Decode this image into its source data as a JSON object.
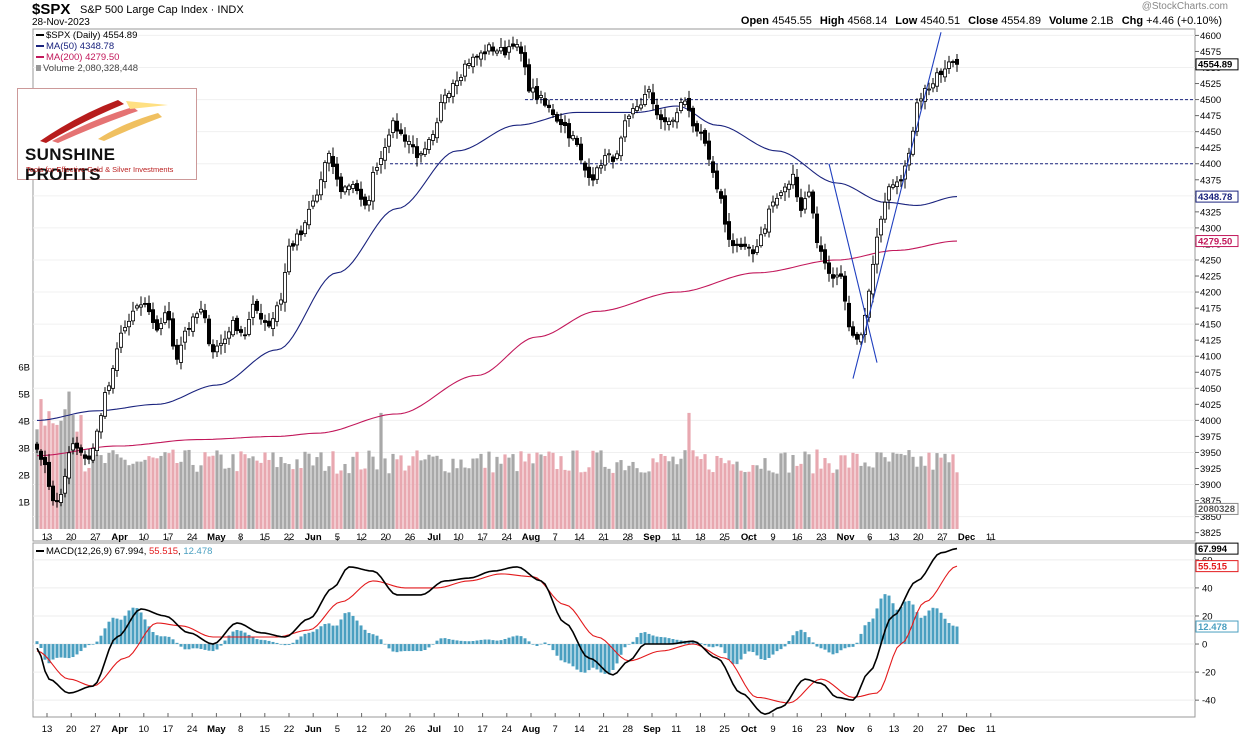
{
  "header": {
    "symbol": "$SPX",
    "index_name": "S&P 500 Large Cap Index",
    "exchange": "INDX",
    "date": "28-Nov-2023",
    "watermark": "@StockCharts.com",
    "open_label": "Open",
    "open": "4545.55",
    "high_label": "High",
    "high": "4568.14",
    "low_label": "Low",
    "low": "4540.51",
    "close_label": "Close",
    "close": "4554.89",
    "volume_label": "Volume",
    "volume": "2.1B",
    "chg_label": "Chg",
    "chg": "+4.46 (+0.10%)"
  },
  "legend": {
    "price": "$SPX (Daily) 4554.89",
    "ma50": "MA(50) 4348.78",
    "ma200": "MA(200) 4279.50",
    "volume": "Volume 2,080,328,448",
    "macd_name": "MACD(12,26,9)",
    "macd_val": "67.994",
    "signal_val": "55.515",
    "hist_val": "12.478"
  },
  "logo": {
    "name": "SUNSHINE PROFITS",
    "tagline": "Tools for Effective Gold & Silver Investments"
  },
  "colors": {
    "up_candle": "#ffffff",
    "down_candle": "#000000",
    "ma50": "#1a237e",
    "ma200": "#c2185b",
    "vol_up": "#a8a8a8",
    "vol_down": "#e8a8b0",
    "macd_line": "#000000",
    "signal_line": "#e31a1c",
    "histogram": "#4a9fc0",
    "dashed_level": "#1a237e",
    "trendline": "#1f3fbf"
  },
  "chart_data": {
    "type": "candlestick",
    "x_ticks": [
      "13",
      "20",
      "27",
      "Apr",
      "10",
      "17",
      "24",
      "May",
      "8",
      "15",
      "22",
      "Jun",
      "5",
      "12",
      "20",
      "26",
      "Jul",
      "10",
      "17",
      "24",
      "Aug",
      "7",
      "14",
      "21",
      "28",
      "Sep",
      "11",
      "18",
      "25",
      "Oct",
      "9",
      "16",
      "23",
      "Nov",
      "6",
      "13",
      "20",
      "27",
      "Dec",
      "11"
    ],
    "price_axis": {
      "ticks": [
        3825,
        3850,
        3875,
        3900,
        3925,
        3950,
        3975,
        4000,
        4025,
        4050,
        4075,
        4100,
        4125,
        4150,
        4175,
        4200,
        4225,
        4250,
        4275,
        4300,
        4325,
        4350,
        4375,
        4400,
        4425,
        4450,
        4475,
        4500,
        4525,
        4550,
        4575,
        4600
      ],
      "range": [
        3812,
        4610
      ],
      "last_price_label": "4554.89",
      "ma50_label": "4348.78",
      "ma200_label": "4279.50",
      "volume_label": "2080328"
    },
    "volume_axis": {
      "ticks": [
        "1B",
        "2B",
        "3B",
        "4B",
        "5B",
        "6B"
      ]
    },
    "macd_axis": {
      "ticks": [
        -40,
        -20,
        0,
        20,
        40,
        60
      ],
      "range": [
        -52,
        72
      ]
    },
    "horizontal_levels": [
      4500,
      4400
    ],
    "close_anchors": [
      [
        0,
        3955
      ],
      [
        5,
        3870
      ],
      [
        9,
        3960
      ],
      [
        13,
        3935
      ],
      [
        15,
        3985
      ],
      [
        18,
        4060
      ],
      [
        21,
        4130
      ],
      [
        24,
        4170
      ],
      [
        27,
        4180
      ],
      [
        30,
        4135
      ],
      [
        32,
        4170
      ],
      [
        35,
        4100
      ],
      [
        37,
        4140
      ],
      [
        41,
        4170
      ],
      [
        44,
        4110
      ],
      [
        46,
        4120
      ],
      [
        49,
        4150
      ],
      [
        52,
        4135
      ],
      [
        54,
        4175
      ],
      [
        58,
        4150
      ],
      [
        61,
        4190
      ],
      [
        63,
        4270
      ],
      [
        66,
        4290
      ],
      [
        69,
        4340
      ],
      [
        73,
        4410
      ],
      [
        76,
        4360
      ],
      [
        79,
        4370
      ],
      [
        82,
        4330
      ],
      [
        85,
        4400
      ],
      [
        89,
        4460
      ],
      [
        92,
        4440
      ],
      [
        96,
        4410
      ],
      [
        99,
        4440
      ],
      [
        102,
        4510
      ],
      [
        105,
        4535
      ],
      [
        108,
        4560
      ],
      [
        111,
        4570
      ],
      [
        113,
        4580
      ],
      [
        117,
        4575
      ],
      [
        119,
        4590
      ],
      [
        121,
        4570
      ],
      [
        123,
        4520
      ],
      [
        125,
        4505
      ],
      [
        128,
        4485
      ],
      [
        131,
        4465
      ],
      [
        134,
        4440
      ],
      [
        137,
        4390
      ],
      [
        139,
        4380
      ],
      [
        142,
        4410
      ],
      [
        145,
        4410
      ],
      [
        147,
        4460
      ],
      [
        150,
        4490
      ],
      [
        153,
        4510
      ],
      [
        155,
        4480
      ],
      [
        157,
        4460
      ],
      [
        159,
        4470
      ],
      [
        162,
        4500
      ],
      [
        164,
        4460
      ],
      [
        166,
        4450
      ],
      [
        168,
        4400
      ],
      [
        171,
        4340
      ],
      [
        173,
        4280
      ],
      [
        176,
        4270
      ],
      [
        179,
        4260
      ],
      [
        181,
        4290
      ],
      [
        184,
        4340
      ],
      [
        187,
        4360
      ],
      [
        189,
        4380
      ],
      [
        191,
        4330
      ],
      [
        193,
        4360
      ],
      [
        195,
        4280
      ],
      [
        198,
        4230
      ],
      [
        201,
        4220
      ],
      [
        203,
        4140
      ],
      [
        205,
        4120
      ],
      [
        207,
        4160
      ],
      [
        209,
        4240
      ],
      [
        211,
        4320
      ],
      [
        213,
        4370
      ],
      [
        216,
        4380
      ],
      [
        218,
        4410
      ],
      [
        220,
        4500
      ],
      [
        223,
        4520
      ],
      [
        226,
        4540
      ],
      [
        229,
        4560
      ],
      [
        230,
        4554.89
      ]
    ],
    "ma50_anchors": [
      [
        0,
        4000
      ],
      [
        15,
        4015
      ],
      [
        30,
        4025
      ],
      [
        45,
        4055
      ],
      [
        60,
        4110
      ],
      [
        75,
        4230
      ],
      [
        90,
        4330
      ],
      [
        105,
        4420
      ],
      [
        120,
        4460
      ],
      [
        135,
        4480
      ],
      [
        150,
        4480
      ],
      [
        160,
        4490
      ],
      [
        170,
        4460
      ],
      [
        185,
        4420
      ],
      [
        200,
        4370
      ],
      [
        212,
        4340
      ],
      [
        220,
        4335
      ],
      [
        230,
        4348.78
      ]
    ],
    "ma200_anchors": [
      [
        0,
        3945
      ],
      [
        20,
        3960
      ],
      [
        40,
        3970
      ],
      [
        60,
        3975
      ],
      [
        70,
        3980
      ],
      [
        90,
        4010
      ],
      [
        110,
        4070
      ],
      [
        125,
        4130
      ],
      [
        140,
        4170
      ],
      [
        160,
        4200
      ],
      [
        180,
        4230
      ],
      [
        200,
        4250
      ],
      [
        215,
        4265
      ],
      [
        230,
        4279.5
      ]
    ],
    "macd_anchors": [
      [
        0,
        -3
      ],
      [
        3,
        -25
      ],
      [
        8,
        -35
      ],
      [
        14,
        -30
      ],
      [
        20,
        5
      ],
      [
        26,
        25
      ],
      [
        32,
        20
      ],
      [
        38,
        8
      ],
      [
        44,
        0
      ],
      [
        50,
        15
      ],
      [
        56,
        8
      ],
      [
        62,
        5
      ],
      [
        68,
        18
      ],
      [
        74,
        40
      ],
      [
        78,
        55
      ],
      [
        84,
        52
      ],
      [
        90,
        35
      ],
      [
        96,
        35
      ],
      [
        102,
        45
      ],
      [
        108,
        47
      ],
      [
        114,
        52
      ],
      [
        120,
        55
      ],
      [
        126,
        45
      ],
      [
        132,
        15
      ],
      [
        138,
        -10
      ],
      [
        144,
        -22
      ],
      [
        148,
        -12
      ],
      [
        152,
        0
      ],
      [
        158,
        0
      ],
      [
        164,
        2
      ],
      [
        170,
        -10
      ],
      [
        176,
        -35
      ],
      [
        182,
        -50
      ],
      [
        186,
        -45
      ],
      [
        192,
        -25
      ],
      [
        196,
        -28
      ],
      [
        200,
        -38
      ],
      [
        204,
        -40
      ],
      [
        208,
        -20
      ],
      [
        214,
        20
      ],
      [
        220,
        45
      ],
      [
        226,
        65
      ],
      [
        230,
        67.994
      ]
    ],
    "signal_anchors": [
      [
        0,
        -5
      ],
      [
        8,
        -25
      ],
      [
        14,
        -30
      ],
      [
        22,
        -10
      ],
      [
        30,
        15
      ],
      [
        36,
        13
      ],
      [
        44,
        5
      ],
      [
        52,
        5
      ],
      [
        60,
        5
      ],
      [
        68,
        10
      ],
      [
        76,
        30
      ],
      [
        84,
        45
      ],
      [
        92,
        40
      ],
      [
        100,
        40
      ],
      [
        108,
        45
      ],
      [
        116,
        50
      ],
      [
        124,
        48
      ],
      [
        132,
        28
      ],
      [
        140,
        5
      ],
      [
        148,
        -12
      ],
      [
        156,
        -5
      ],
      [
        164,
        0
      ],
      [
        172,
        -10
      ],
      [
        180,
        -38
      ],
      [
        188,
        -42
      ],
      [
        196,
        -25
      ],
      [
        204,
        -38
      ],
      [
        210,
        -35
      ],
      [
        216,
        0
      ],
      [
        222,
        30
      ],
      [
        230,
        55.515
      ]
    ]
  }
}
